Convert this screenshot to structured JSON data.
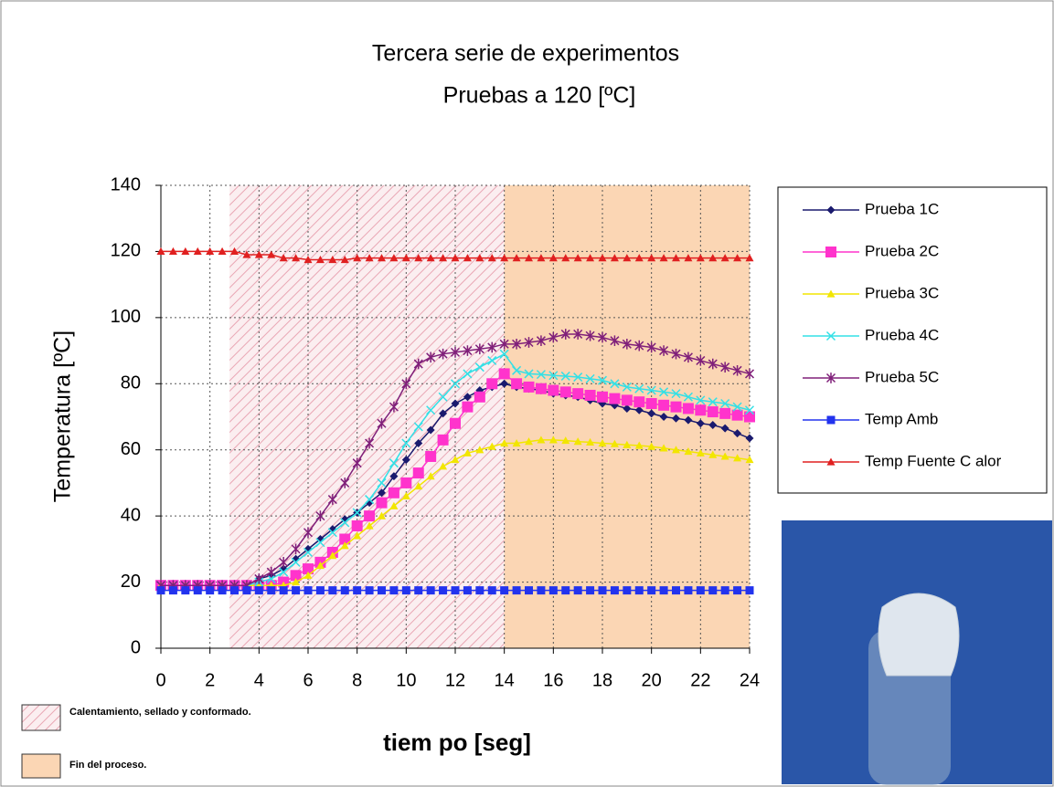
{
  "chart_data": {
    "type": "line",
    "title": "Tercera serie de experimentos",
    "subtitle": "Pruebas a 120 [ºC]",
    "x_label": "tiem po [seg]",
    "y_label": "Temperatura [ºC]",
    "x": [
      0,
      0.5,
      1,
      1.5,
      2,
      2.5,
      3,
      3.5,
      4,
      4.5,
      5,
      5.5,
      6,
      6.5,
      7,
      7.5,
      8,
      8.5,
      9,
      9.5,
      10,
      10.5,
      11,
      11.5,
      12,
      12.5,
      13,
      13.5,
      14,
      14.5,
      15,
      15.5,
      16,
      16.5,
      17,
      17.5,
      18,
      18.5,
      19,
      19.5,
      20,
      20.5,
      21,
      21.5,
      22,
      22.5,
      23,
      23.5,
      24
    ],
    "xlim": [
      0,
      24
    ],
    "xticks": [
      0,
      2,
      4,
      6,
      8,
      10,
      12,
      14,
      16,
      18,
      20,
      22,
      24
    ],
    "ylim": [
      0,
      140
    ],
    "yticks": [
      0,
      20,
      40,
      60,
      80,
      100,
      120,
      140
    ],
    "grid": true,
    "legend": "right",
    "regions": [
      {
        "label": "Calentamiento, sellado y conformado.",
        "xlim": [
          2.8,
          14
        ],
        "color": "#f2c6cf"
      },
      {
        "label": "Fin del proceso.",
        "xlim": [
          14,
          24
        ],
        "color": "#fbd6b4"
      }
    ],
    "series": [
      {
        "name": "Prueba 1C",
        "color": "#1a1a6e",
        "marker": "diamond",
        "values": [
          19,
          19,
          19,
          19,
          19,
          19,
          19,
          19,
          21,
          22,
          24,
          27,
          30,
          33,
          36,
          39,
          41,
          44,
          47,
          52,
          57,
          62,
          66,
          71,
          74,
          76,
          78,
          79,
          80,
          79,
          78.5,
          78,
          77,
          76.5,
          76,
          75,
          74,
          73.5,
          72.5,
          72,
          71,
          70,
          69.5,
          69,
          68,
          67.5,
          66.5,
          65,
          63.5
        ]
      },
      {
        "name": "Prueba 2C",
        "color": "#ff33cc",
        "marker": "square",
        "values": [
          19,
          19,
          19,
          19,
          19,
          19,
          19,
          19,
          19,
          19,
          20,
          22,
          24,
          26,
          29,
          33,
          37,
          40,
          44,
          47,
          50,
          53,
          58,
          63,
          68,
          73,
          76,
          80,
          83,
          80,
          79,
          78.5,
          78,
          77.5,
          77,
          76.5,
          76,
          75.5,
          75,
          74.5,
          74,
          73.5,
          73,
          72.5,
          72,
          71.5,
          71,
          70.5,
          70
        ]
      },
      {
        "name": "Prueba 3C",
        "color": "#f2e600",
        "marker": "triangle",
        "values": [
          19,
          19,
          19,
          19,
          19,
          19,
          19,
          19,
          19,
          19,
          19,
          20,
          22,
          25,
          28,
          31,
          34,
          37,
          40,
          43,
          46,
          49,
          52,
          55,
          57,
          59,
          60,
          61,
          62,
          62,
          62.5,
          63,
          63,
          62.8,
          62.5,
          62.3,
          62,
          61.8,
          61.5,
          61.3,
          61,
          60.5,
          60,
          59.5,
          59,
          58.5,
          58,
          57.5,
          57
        ]
      },
      {
        "name": "Prueba 4C",
        "color": "#33e0e6",
        "marker": "x",
        "values": [
          19,
          19,
          19,
          19,
          19,
          19,
          19,
          19,
          20,
          21,
          23,
          26,
          29,
          32,
          35,
          38,
          41,
          45,
          50,
          56,
          62,
          67,
          72,
          76,
          80,
          83,
          85,
          87,
          89,
          84,
          83,
          82.8,
          82.5,
          82.3,
          82,
          81.5,
          81,
          80,
          79,
          78.5,
          78,
          77.5,
          77,
          76,
          75,
          74.5,
          74,
          73,
          72
        ]
      },
      {
        "name": "Prueba 5C",
        "color": "#80207a",
        "marker": "star",
        "values": [
          19,
          19,
          19,
          19,
          19,
          19,
          19,
          19,
          21,
          23,
          26,
          30,
          35,
          40,
          45,
          50,
          56,
          62,
          68,
          73,
          80,
          86,
          88,
          89,
          89.5,
          90,
          90.5,
          91,
          92,
          92,
          92.5,
          93,
          94,
          95,
          95,
          94.5,
          94,
          93,
          92,
          91.5,
          91,
          90,
          89,
          88,
          87,
          86,
          85,
          84,
          83
        ]
      },
      {
        "name": "Temp Amb",
        "color": "#2233ee",
        "marker": "square",
        "values": [
          17.5,
          17.5,
          17.5,
          17.5,
          17.5,
          17.5,
          17.5,
          17.5,
          17.5,
          17.5,
          17.5,
          17.5,
          17.5,
          17.5,
          17.5,
          17.5,
          17.5,
          17.5,
          17.5,
          17.5,
          17.5,
          17.5,
          17.5,
          17.5,
          17.5,
          17.5,
          17.5,
          17.5,
          17.5,
          17.5,
          17.5,
          17.5,
          17.5,
          17.5,
          17.5,
          17.5,
          17.5,
          17.5,
          17.5,
          17.5,
          17.5,
          17.5,
          17.5,
          17.5,
          17.5,
          17.5,
          17.5,
          17.5,
          17.5
        ]
      },
      {
        "name": "Temp Fuente C alor",
        "color": "#e02020",
        "marker": "triangle",
        "values": [
          120,
          120,
          120,
          120,
          120,
          120,
          120,
          119,
          119,
          119,
          118,
          118,
          117.5,
          117.5,
          117.5,
          117.5,
          118,
          118,
          118,
          118,
          118,
          118,
          118,
          118,
          118,
          118,
          118,
          118,
          118,
          118,
          118,
          118,
          118,
          118,
          118,
          118,
          118,
          118,
          118,
          118,
          118,
          118,
          118,
          118,
          118,
          118,
          118,
          118,
          118
        ]
      }
    ]
  }
}
